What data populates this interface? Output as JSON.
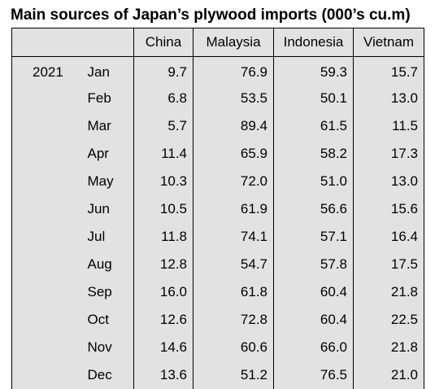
{
  "title": "Main sources of Japan’s plywood imports (000’s cu.m)",
  "columns": [
    "China",
    "Malaysia",
    "Indonesia",
    "Vietnam"
  ],
  "year": "2021",
  "rows": [
    {
      "month": "Jan",
      "values": [
        "9.7",
        "76.9",
        "59.3",
        "15.7"
      ]
    },
    {
      "month": "Feb",
      "values": [
        "6.8",
        "53.5",
        "50.1",
        "13.0"
      ]
    },
    {
      "month": "Mar",
      "values": [
        "5.7",
        "89.4",
        "61.5",
        "11.5"
      ]
    },
    {
      "month": "Apr",
      "values": [
        "11.4",
        "65.9",
        "58.2",
        "17.3"
      ]
    },
    {
      "month": "May",
      "values": [
        "10.3",
        "72.0",
        "51.0",
        "13.0"
      ]
    },
    {
      "month": "Jun",
      "values": [
        "10.5",
        "61.9",
        "56.6",
        "15.6"
      ]
    },
    {
      "month": "Jul",
      "values": [
        "11.8",
        "74.1",
        "57.1",
        "16.4"
      ]
    },
    {
      "month": "Aug",
      "values": [
        "12.8",
        "54.7",
        "57.8",
        "17.5"
      ]
    },
    {
      "month": "Sep",
      "values": [
        "16.0",
        "61.8",
        "60.4",
        "21.8"
      ]
    },
    {
      "month": "Oct",
      "values": [
        "12.6",
        "72.8",
        "60.4",
        "22.5"
      ]
    },
    {
      "month": "Nov",
      "values": [
        "14.6",
        "60.6",
        "66.0",
        "21.8"
      ]
    },
    {
      "month": "Dec",
      "values": [
        "13.6",
        "51.2",
        "76.5",
        "21.0"
      ]
    }
  ]
}
